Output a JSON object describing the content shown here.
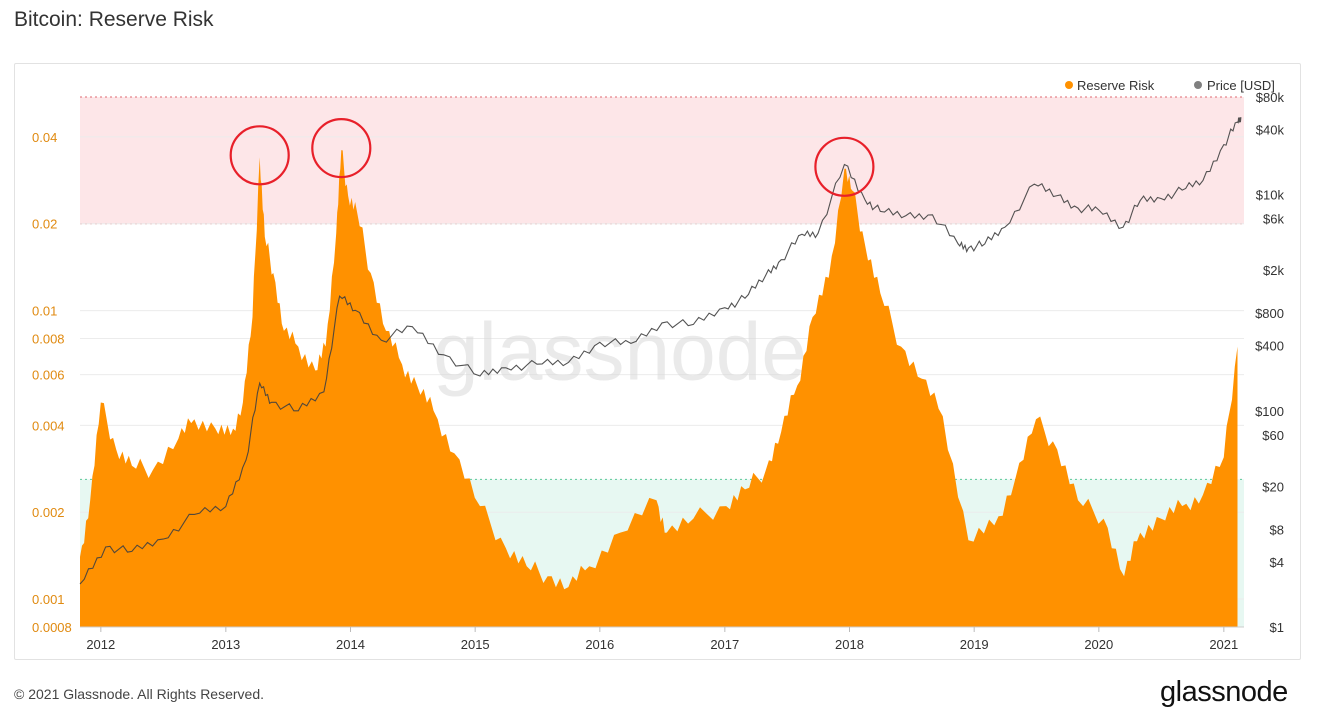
{
  "title": "Bitcoin: Reserve Risk",
  "footer": {
    "copyright": "© 2021 Glassnode. All Rights Reserved.",
    "logo": "glassnode"
  },
  "watermark": "glassnode",
  "colors": {
    "reserve_risk": "#ff9100",
    "price": "#808080",
    "high_zone": "#fde6e8",
    "low_zone": "#e7f8f2",
    "circle": "#e8202a",
    "left_axis_text": "#e08a10"
  },
  "chart_data": {
    "type": "area",
    "title": "Bitcoin: Reserve Risk",
    "x_axis": {
      "type": "date",
      "range": [
        "2011-11-01",
        "2021-03-01"
      ],
      "ticks": [
        "2012",
        "2013",
        "2014",
        "2015",
        "2016",
        "2017",
        "2018",
        "2019",
        "2020",
        "2021"
      ]
    },
    "y_left": {
      "scale": "log",
      "range": [
        0.0008,
        0.055
      ],
      "ticks": [
        "0.04",
        "0.02",
        "0.01",
        "0.008",
        "0.006",
        "0.004",
        "0.002",
        "0.001",
        "0.0008"
      ]
    },
    "y_right": {
      "scale": "log",
      "range": [
        1,
        80000
      ],
      "ticks": [
        "$80k",
        "$40k",
        "$10k",
        "$6k",
        "$2k",
        "$800",
        "$400",
        "$100",
        "$60",
        "$20",
        "$8",
        "$4",
        "$1"
      ]
    },
    "legend": {
      "placement": "top-right",
      "items": [
        {
          "label": "Reserve Risk",
          "color": "#ff9100"
        },
        {
          "label": "Price [USD]",
          "color": "#808080"
        }
      ]
    },
    "zones": [
      {
        "name": "high",
        "from": 0.02,
        "to": 0.055,
        "color": "#fde6e8"
      },
      {
        "name": "low",
        "from": 0.0008,
        "to": 0.0026,
        "color": "#e7f8f2"
      }
    ],
    "series": [
      {
        "name": "Reserve Risk",
        "x": [
          "2011-11-01",
          "2011-12-01",
          "2012-01-01",
          "2012-02-15",
          "2012-04-01",
          "2012-06-01",
          "2012-08-15",
          "2012-10-01",
          "2012-12-01",
          "2013-01-15",
          "2013-02-20",
          "2013-03-20",
          "2013-04-10",
          "2013-04-25",
          "2013-05-20",
          "2013-06-20",
          "2013-08-01",
          "2013-09-20",
          "2013-10-20",
          "2013-11-20",
          "2013-12-05",
          "2013-12-25",
          "2014-01-20",
          "2014-03-01",
          "2014-04-15",
          "2014-06-01",
          "2014-07-15",
          "2014-09-01",
          "2014-11-01",
          "2015-01-15",
          "2015-04-01",
          "2015-06-01",
          "2015-08-01",
          "2015-10-01",
          "2015-12-01",
          "2016-03-01",
          "2016-06-15",
          "2016-07-15",
          "2016-10-01",
          "2017-01-05",
          "2017-03-01",
          "2017-05-01",
          "2017-06-15",
          "2017-08-01",
          "2017-09-15",
          "2017-11-01",
          "2017-12-17",
          "2018-01-10",
          "2018-02-15",
          "2018-04-01",
          "2018-06-01",
          "2018-08-01",
          "2018-10-01",
          "2018-12-15",
          "2019-03-01",
          "2019-05-01",
          "2019-07-01",
          "2019-09-01",
          "2019-11-01",
          "2020-01-15",
          "2020-03-15",
          "2020-05-01",
          "2020-07-01",
          "2020-09-01",
          "2020-11-01",
          "2021-01-01",
          "2021-02-10"
        ],
        "values": [
          0.0014,
          0.0022,
          0.0048,
          0.0033,
          0.0029,
          0.0028,
          0.0036,
          0.0042,
          0.0039,
          0.0037,
          0.0048,
          0.0095,
          0.034,
          0.018,
          0.0135,
          0.0085,
          0.0075,
          0.0062,
          0.0075,
          0.0185,
          0.036,
          0.025,
          0.022,
          0.0135,
          0.0085,
          0.0065,
          0.0055,
          0.0045,
          0.0032,
          0.0021,
          0.0015,
          0.0013,
          0.0012,
          0.0011,
          0.0013,
          0.0017,
          0.0022,
          0.0017,
          0.0019,
          0.0021,
          0.0024,
          0.0028,
          0.0038,
          0.0055,
          0.0095,
          0.013,
          0.031,
          0.026,
          0.017,
          0.0115,
          0.0075,
          0.0058,
          0.0043,
          0.0016,
          0.0018,
          0.0026,
          0.0042,
          0.0033,
          0.0022,
          0.0019,
          0.0012,
          0.0017,
          0.0019,
          0.0021,
          0.0023,
          0.0031,
          0.0075
        ]
      },
      {
        "name": "Price [USD]",
        "x": [
          "2011-11-01",
          "2012-01-15",
          "2012-04-01",
          "2012-07-01",
          "2012-10-01",
          "2013-01-01",
          "2013-03-01",
          "2013-04-10",
          "2013-05-15",
          "2013-08-01",
          "2013-10-15",
          "2013-11-30",
          "2014-01-15",
          "2014-04-01",
          "2014-07-01",
          "2014-10-01",
          "2015-01-15",
          "2015-04-01",
          "2015-07-01",
          "2015-10-01",
          "2016-01-01",
          "2016-04-01",
          "2016-07-01",
          "2016-10-01",
          "2017-01-01",
          "2017-03-01",
          "2017-05-01",
          "2017-06-15",
          "2017-08-15",
          "2017-10-01",
          "2017-12-17",
          "2018-02-15",
          "2018-04-01",
          "2018-06-15",
          "2018-09-01",
          "2018-11-15",
          "2018-12-15",
          "2019-02-01",
          "2019-04-01",
          "2019-06-26",
          "2019-09-01",
          "2019-11-01",
          "2020-01-01",
          "2020-03-12",
          "2020-05-01",
          "2020-07-01",
          "2020-09-01",
          "2020-11-01",
          "2021-01-01",
          "2021-02-10",
          "2021-02-20"
        ],
        "values": [
          2.5,
          5.5,
          5,
          6.5,
          11,
          13,
          35,
          180,
          120,
          100,
          150,
          1150,
          850,
          450,
          600,
          330,
          210,
          250,
          270,
          280,
          430,
          420,
          650,
          630,
          900,
          1100,
          1800,
          2500,
          4300,
          4400,
          19000,
          9000,
          7000,
          6400,
          6500,
          3500,
          3200,
          3500,
          5000,
          12500,
          9800,
          7500,
          7200,
          5000,
          8800,
          9200,
          11000,
          13500,
          29000,
          47000,
          52000
        ]
      }
    ]
  }
}
